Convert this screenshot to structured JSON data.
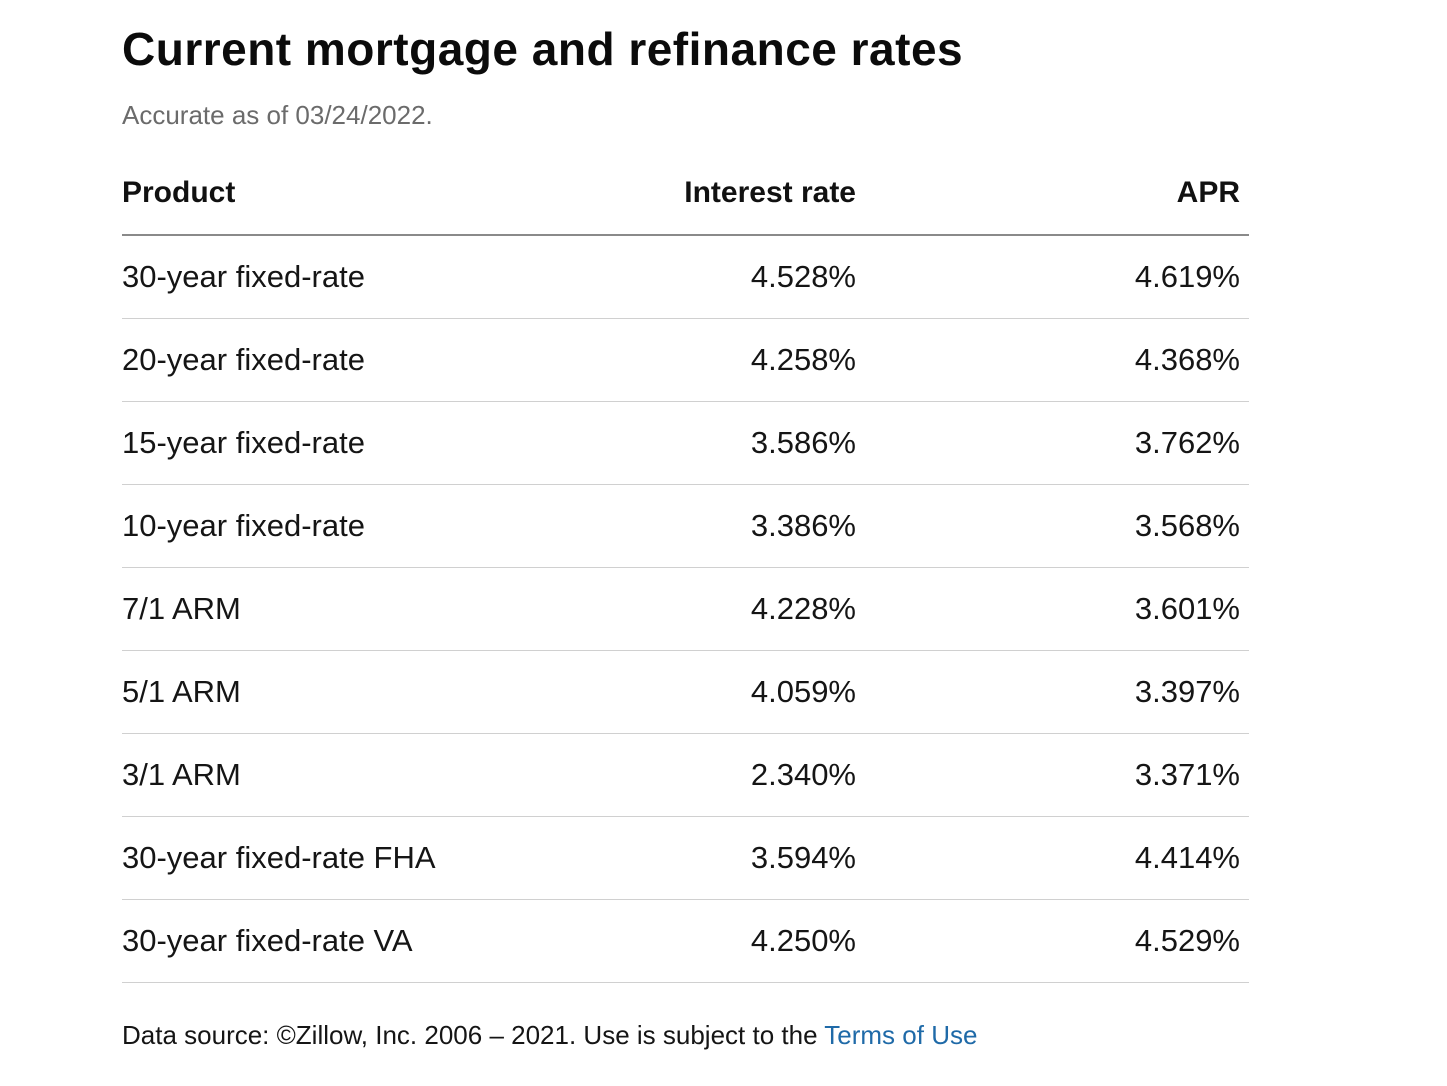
{
  "title": "Current mortgage and refinance rates",
  "subtitle": "Accurate as of 03/24/2022.",
  "table": {
    "headers": {
      "product": "Product",
      "interest_rate": "Interest rate",
      "apr": "APR"
    },
    "rows": [
      {
        "product": "30-year fixed-rate",
        "interest_rate": "4.528%",
        "apr": "4.619%"
      },
      {
        "product": "20-year fixed-rate",
        "interest_rate": "4.258%",
        "apr": "4.368%"
      },
      {
        "product": "15-year fixed-rate",
        "interest_rate": "3.586%",
        "apr": "3.762%"
      },
      {
        "product": "10-year fixed-rate",
        "interest_rate": "3.386%",
        "apr": "3.568%"
      },
      {
        "product": "7/1 ARM",
        "interest_rate": "4.228%",
        "apr": "3.601%"
      },
      {
        "product": "5/1 ARM",
        "interest_rate": "4.059%",
        "apr": "3.397%"
      },
      {
        "product": "3/1 ARM",
        "interest_rate": "2.340%",
        "apr": "3.371%"
      },
      {
        "product": "30-year fixed-rate FHA",
        "interest_rate": "3.594%",
        "apr": "4.414%"
      },
      {
        "product": "30-year fixed-rate VA",
        "interest_rate": "4.250%",
        "apr": "4.529%"
      }
    ]
  },
  "footer": {
    "source_text": "Data source: ©Zillow, Inc. 2006 – 2021. Use is subject to the ",
    "terms_link": "Terms of Use"
  },
  "colors": {
    "link": "#1f6aa8",
    "subtitle": "#6b6b6b"
  }
}
